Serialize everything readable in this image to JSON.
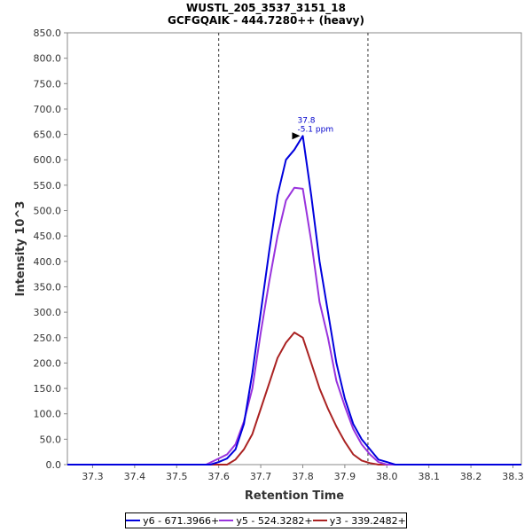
{
  "chart_data": {
    "type": "line",
    "title": "WUSTL_205_3537_3151_18",
    "subtitle": "GCFGQAIK - 444.7280++ (heavy)",
    "xlabel": "Retention Time",
    "ylabel": "Intensity 10^3",
    "xlim": [
      37.24,
      38.32
    ],
    "ylim": [
      0,
      850
    ],
    "x_ticks": [
      "37.3",
      "37.4",
      "37.5",
      "37.6",
      "37.7",
      "37.8",
      "37.9",
      "38.0",
      "38.1",
      "38.2",
      "38.3"
    ],
    "x_tick_values": [
      37.3,
      37.4,
      37.5,
      37.6,
      37.7,
      37.8,
      37.9,
      38.0,
      38.1,
      38.2,
      38.3
    ],
    "y_ticks": [
      "0.0",
      "50.0",
      "100.0",
      "150.0",
      "200.0",
      "250.0",
      "300.0",
      "350.0",
      "400.0",
      "450.0",
      "500.0",
      "550.0",
      "600.0",
      "650.0",
      "700.0",
      "750.0",
      "800.0",
      "850.0"
    ],
    "y_tick_values": [
      0,
      50,
      100,
      150,
      200,
      250,
      300,
      350,
      400,
      450,
      500,
      550,
      600,
      650,
      700,
      750,
      800,
      850
    ],
    "integration_boundaries": [
      37.6,
      37.955
    ],
    "peak_annotation": {
      "x": 37.8,
      "y": 647,
      "line1": "37.8",
      "line2": "-5.1 ppm"
    },
    "series": [
      {
        "name": "y6 - 671.3966+",
        "color": "#0000dd",
        "x": [
          37.24,
          37.58,
          37.6,
          37.62,
          37.64,
          37.66,
          37.68,
          37.7,
          37.72,
          37.74,
          37.76,
          37.78,
          37.8,
          37.82,
          37.84,
          37.86,
          37.88,
          37.9,
          37.92,
          37.94,
          37.96,
          37.98,
          38.0,
          38.02,
          38.32
        ],
        "values": [
          0,
          0,
          5,
          12,
          30,
          80,
          180,
          300,
          420,
          530,
          600,
          620,
          647,
          530,
          400,
          300,
          200,
          130,
          80,
          50,
          30,
          10,
          5,
          0,
          0
        ]
      },
      {
        "name": "y5 - 524.3282+",
        "color": "#9933dd",
        "x": [
          37.24,
          37.57,
          37.6,
          37.62,
          37.64,
          37.66,
          37.68,
          37.7,
          37.72,
          37.74,
          37.76,
          37.78,
          37.8,
          37.82,
          37.84,
          37.86,
          37.88,
          37.9,
          37.92,
          37.94,
          37.96,
          37.98,
          38.0,
          38.32
        ],
        "values": [
          0,
          0,
          12,
          20,
          40,
          85,
          150,
          260,
          360,
          450,
          520,
          545,
          543,
          440,
          320,
          250,
          165,
          115,
          70,
          40,
          20,
          5,
          0,
          0
        ]
      },
      {
        "name": "y3 - 339.2482+",
        "color": "#aa2222",
        "x": [
          37.24,
          37.62,
          37.64,
          37.66,
          37.68,
          37.7,
          37.72,
          37.74,
          37.76,
          37.78,
          37.8,
          37.82,
          37.84,
          37.86,
          37.88,
          37.9,
          37.92,
          37.94,
          37.96,
          37.98,
          38.32
        ],
        "values": [
          0,
          0,
          10,
          30,
          60,
          110,
          160,
          210,
          240,
          260,
          250,
          200,
          150,
          110,
          75,
          45,
          20,
          8,
          3,
          0,
          0
        ]
      }
    ]
  }
}
